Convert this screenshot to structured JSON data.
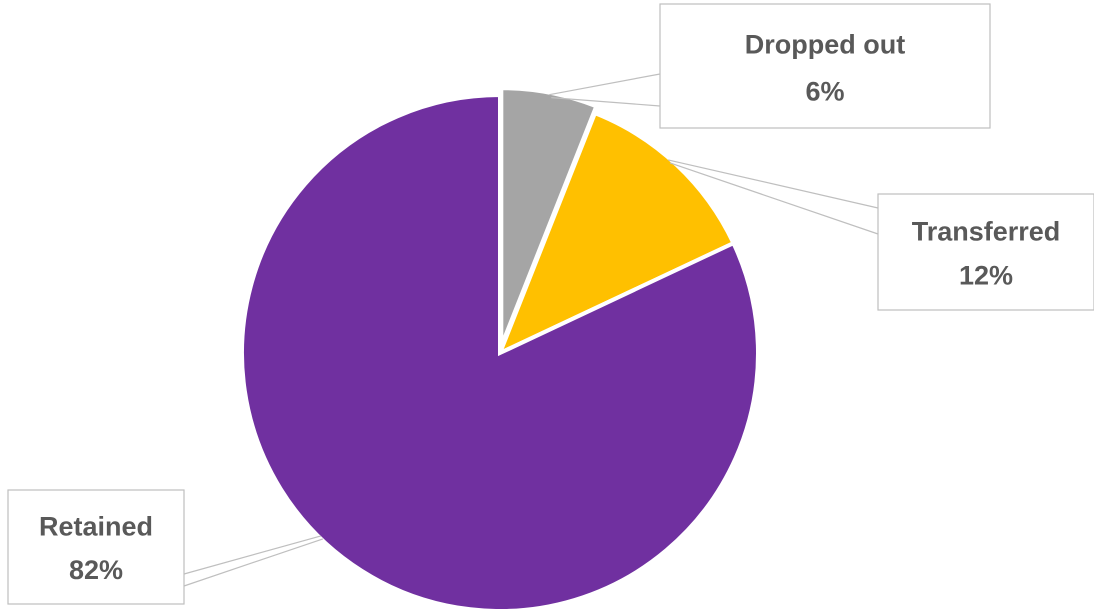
{
  "chart_data": {
    "type": "pie",
    "title": "",
    "slices": [
      {
        "label": "Dropped out",
        "value": 6,
        "display": "6%",
        "color": "#a5a5a5"
      },
      {
        "label": "Transferred",
        "value": 12,
        "display": "12%",
        "color": "#ffc000"
      },
      {
        "label": "Retained",
        "value": 82,
        "display": "82%",
        "color": "#7030a0"
      }
    ],
    "start_angle": "12 o'clock",
    "direction": "clockwise",
    "legend": "none",
    "data_labels": "callout boxes with category name and percentage"
  }
}
